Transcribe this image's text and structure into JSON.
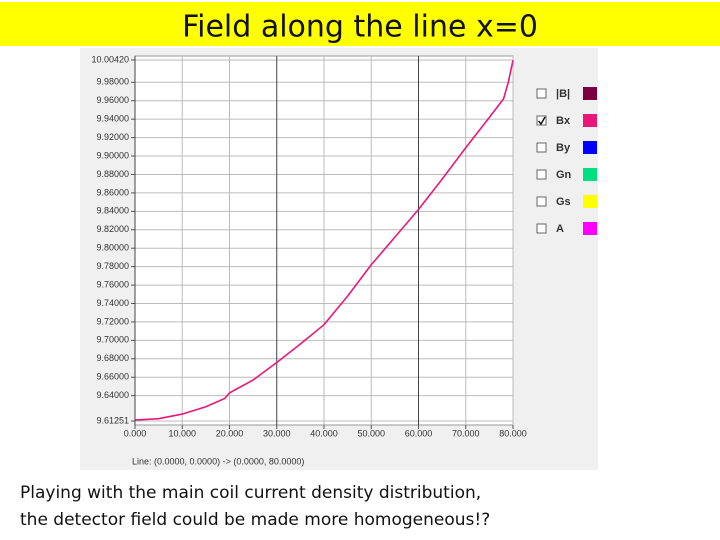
{
  "title": "Field along the line  x=0",
  "chart_data": {
    "type": "line",
    "x_label": "Line: (0.0000, 0.0000) -> (0.0000, 80.0000)",
    "x": [
      0,
      5,
      10,
      15,
      19,
      20,
      25,
      30,
      35,
      40,
      45,
      50,
      55,
      60,
      65,
      70,
      75,
      78,
      79,
      80
    ],
    "series": [
      {
        "name": "|B|",
        "color": "#7b0040",
        "visible": false
      },
      {
        "name": "Bx",
        "color": "#e8187a",
        "visible": true,
        "values": [
          9.6135,
          9.615,
          9.62,
          9.628,
          9.637,
          9.643,
          9.657,
          9.676,
          9.696,
          9.717,
          9.748,
          9.782,
          9.812,
          9.842,
          9.875,
          9.909,
          9.942,
          9.962,
          9.98,
          10.004
        ]
      },
      {
        "name": "By",
        "color": "#0000ff",
        "visible": false
      },
      {
        "name": "Gn",
        "color": "#00e080",
        "visible": false
      },
      {
        "name": "Gs",
        "color": "#ffff00",
        "visible": false
      },
      {
        "name": "A",
        "color": "#ff00ff",
        "visible": false
      }
    ],
    "xlim": [
      0,
      80
    ],
    "xticks": [
      {
        "value": 0,
        "label": "0.000"
      },
      {
        "value": 10,
        "label": "10.000"
      },
      {
        "value": 20,
        "label": "20.000"
      },
      {
        "value": 30,
        "label": "30.000"
      },
      {
        "value": 40,
        "label": "40.000"
      },
      {
        "value": 50,
        "label": "50.000"
      },
      {
        "value": 60,
        "label": "60.000"
      },
      {
        "value": 70,
        "label": "70.000"
      },
      {
        "value": 80,
        "label": "80.000"
      }
    ],
    "ylim": [
      9.61251,
      10.0042
    ],
    "yticks": [
      {
        "value": 9.61251,
        "label": "9.61251"
      },
      {
        "value": 9.64,
        "label": "9.64000"
      },
      {
        "value": 9.66,
        "label": "9.66000"
      },
      {
        "value": 9.68,
        "label": "9.68000"
      },
      {
        "value": 9.7,
        "label": "9.70000"
      },
      {
        "value": 9.72,
        "label": "9.72000"
      },
      {
        "value": 9.74,
        "label": "9.74000"
      },
      {
        "value": 9.76,
        "label": "9.76000"
      },
      {
        "value": 9.78,
        "label": "9.78000"
      },
      {
        "value": 9.8,
        "label": "9.80000"
      },
      {
        "value": 9.82,
        "label": "9.82000"
      },
      {
        "value": 9.84,
        "label": "9.84000"
      },
      {
        "value": 9.86,
        "label": "9.86000"
      },
      {
        "value": 9.88,
        "label": "9.88000"
      },
      {
        "value": 9.9,
        "label": "9.90000"
      },
      {
        "value": 9.92,
        "label": "9.92000"
      },
      {
        "value": 9.94,
        "label": "9.94000"
      },
      {
        "value": 9.96,
        "label": "9.96000"
      },
      {
        "value": 9.98,
        "label": "9.98000"
      },
      {
        "value": 10.0042,
        "label": "10.00420"
      }
    ],
    "grid": true
  },
  "caption_lines": [
    "Playing with the main coil current  density distribution,",
    "the  detector field could be made more homogeneous!?"
  ]
}
